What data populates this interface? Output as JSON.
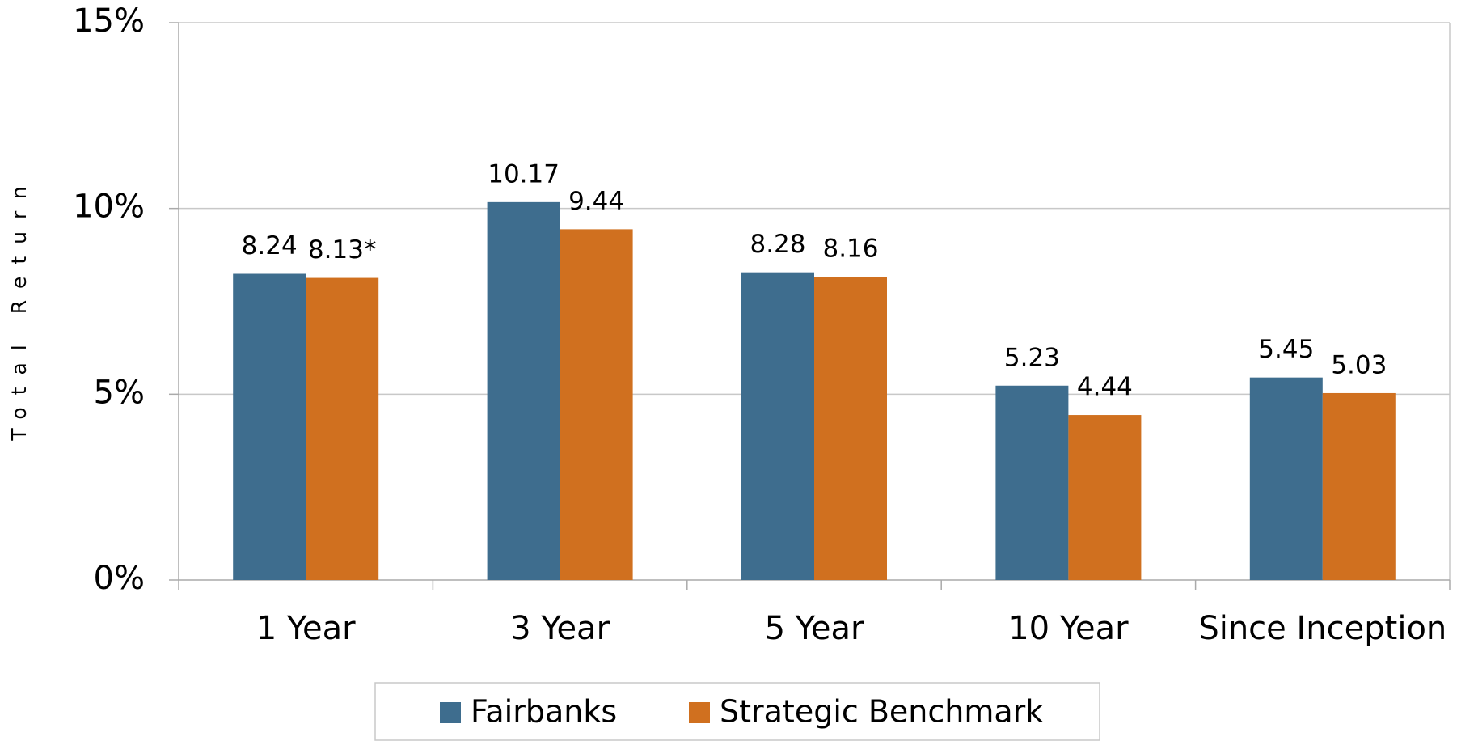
{
  "chart_data": {
    "type": "bar",
    "y_label": "Total Return",
    "categories": [
      "1 Year",
      "3 Year",
      "5 Year",
      "10 Year",
      "Since Inception"
    ],
    "series": [
      {
        "name": "Fairbanks",
        "color": "#3e6d8e",
        "values": [
          8.24,
          10.17,
          8.28,
          5.23,
          5.45
        ]
      },
      {
        "name": "Strategic Benchmark",
        "color": "#d0701f",
        "values": [
          8.13,
          9.44,
          8.16,
          4.44,
          5.03
        ],
        "value_labels": [
          "8.13*",
          "9.44",
          "8.16",
          "4.44",
          "5.03"
        ]
      }
    ],
    "ylim": [
      0,
      15
    ],
    "yticks": [
      {
        "value": 0,
        "label": "0%"
      },
      {
        "value": 5,
        "label": "5%"
      },
      {
        "value": 10,
        "label": "10%"
      },
      {
        "value": 15,
        "label": "15%"
      }
    ],
    "grid": true,
    "legend": "bottom"
  }
}
